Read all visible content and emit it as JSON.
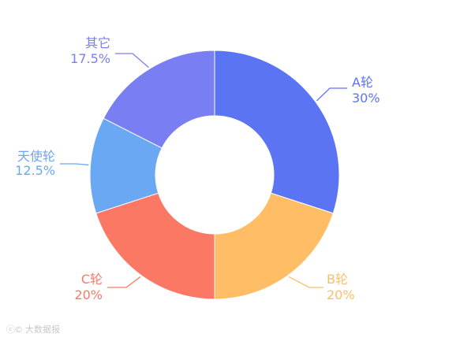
{
  "chart_data": {
    "type": "pie",
    "donut": true,
    "title": "",
    "slices": [
      {
        "name": "A轮",
        "value": 30,
        "label": "30%",
        "color": "#5b74f4"
      },
      {
        "name": "B轮",
        "value": 20,
        "label": "20%",
        "color": "#ffbe66"
      },
      {
        "name": "C轮",
        "value": 20,
        "label": "20%",
        "color": "#fb7964"
      },
      {
        "name": "天使轮",
        "value": 12.5,
        "label": "12.5%",
        "color": "#6aa8f4"
      },
      {
        "name": "其它",
        "value": 17.5,
        "label": "17.5%",
        "color": "#7a7ef3"
      }
    ]
  },
  "watermark": {
    "logo": "ⓒ©",
    "text": "大数据报"
  }
}
